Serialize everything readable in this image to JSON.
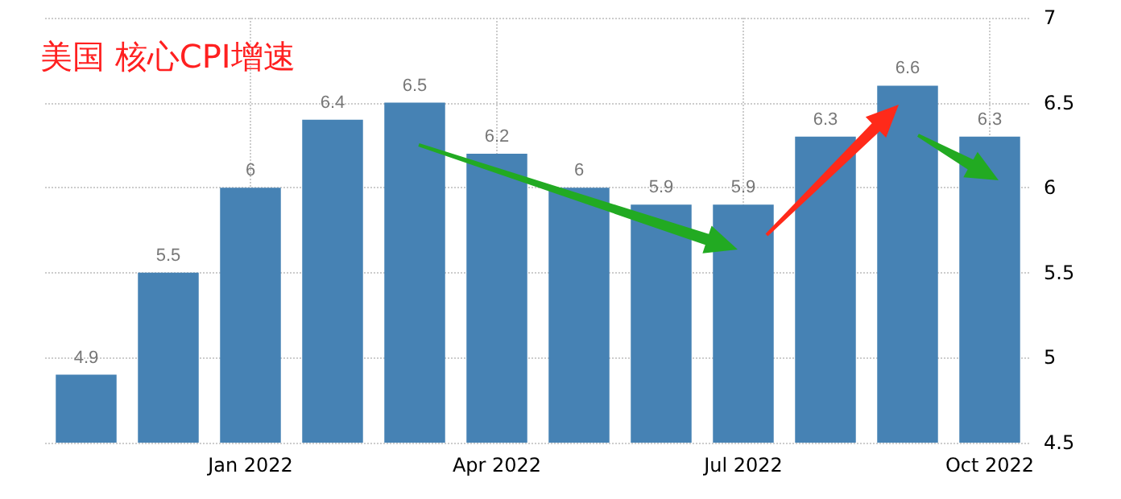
{
  "chart_data": {
    "type": "bar",
    "title": "美国 核心CPI增速",
    "categories": [
      null,
      null,
      "Jan 2022",
      null,
      null,
      "Apr 2022",
      null,
      null,
      "Jul 2022",
      null,
      null,
      "Oct 2022"
    ],
    "values": [
      4.9,
      5.5,
      6,
      6.4,
      6.5,
      6.2,
      6,
      5.9,
      5.9,
      6.3,
      6.6,
      6.3
    ],
    "color": "#4682b4",
    "ylim": [
      4.5,
      7
    ],
    "yticks": [
      4.5,
      5,
      5.5,
      6,
      6.5,
      7
    ],
    "grid": true,
    "data_labels": true
  }
}
